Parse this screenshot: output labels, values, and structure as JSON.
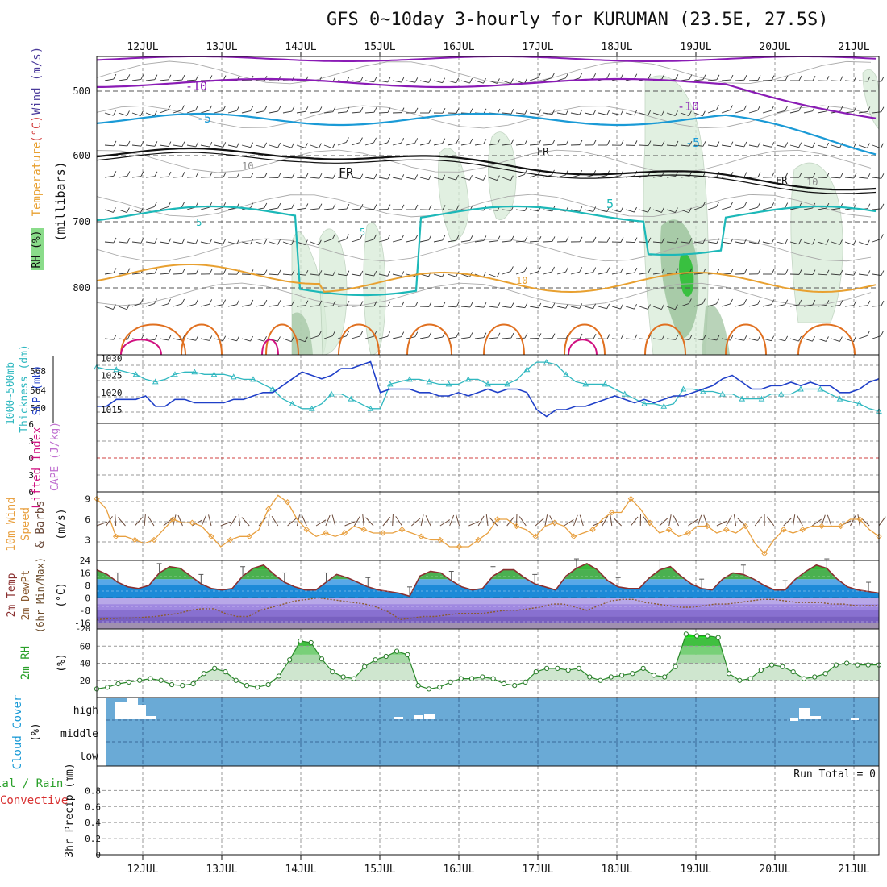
{
  "title": "GFS 0~10day 3-hourly for KURUMAN (23.5E, 27.5S)",
  "dates": [
    "12JUL",
    "13JUL",
    "14JUL",
    "15JUL",
    "16JUL",
    "17JUL",
    "18JUL",
    "19JUL",
    "20JUL",
    "21JUL"
  ],
  "panel_labels": {
    "upper_rh": "RH (%)",
    "upper_temp": "Temperature",
    "upper_temp_unit": "(°C)",
    "upper_wind": "Wind (m/s)",
    "upper_axis": "(millibars)",
    "thickness_a": "1000~500mb",
    "thickness_b": "Thickness (dm)",
    "slp": "SLP (mb)",
    "lifted": "Lifted Index",
    "cape": "CAPE (J/kg)",
    "wind10_a": "10m Wind",
    "wind10_b": "Speed",
    "wind10_c": "& Barbs",
    "wind10_unit": "(m/s)",
    "temp_a": "2m Temp",
    "temp_b": "2m DewPt",
    "temp_c": "(6hr Min/Max)",
    "temp_unit": "(°C)",
    "rh2m": "2m RH",
    "rh_unit": "(%)",
    "cloud_a": "Cloud Cover",
    "cloud_unit": "(%)",
    "precip_a": "tal / Rain",
    "precip_b": "Convective",
    "precip_c": "3hr Precip (mm)",
    "run_total": "Run Total = 0"
  },
  "colors": {
    "purple": "#8a1bb5",
    "blue": "#1a9ad6",
    "teal": "#1cb8b8",
    "orange": "#e8a030",
    "darkorange": "#e07020",
    "magenta": "#d01080",
    "slp": "#2040c8",
    "thick": "#30b8c0",
    "wind10": "#e8a040",
    "cloudbg": "#6aaad6"
  },
  "chart_data": [
    {
      "type": "contour",
      "name": "upper_air",
      "yticks": [
        500,
        600,
        700,
        800
      ],
      "ylim": [
        1000,
        450
      ],
      "contour_labels": [
        "-10",
        "-5",
        "FR",
        "-5",
        "FR",
        "FR",
        "5",
        "-5",
        "-10",
        "5",
        "10",
        "10",
        "10"
      ]
    },
    {
      "type": "line",
      "name": "thickness_slp",
      "y_left_ticks": [
        568,
        564,
        560
      ],
      "y_right_ticks": [
        1030,
        1025,
        1020,
        1015
      ],
      "series": [
        {
          "name": "SLP (mb)",
          "values": [
            1016,
            1016,
            1018,
            1018,
            1018,
            1019,
            1016,
            1016,
            1018,
            1018,
            1017,
            1017,
            1017,
            1017,
            1018,
            1018,
            1019,
            1020,
            1020,
            1022,
            1024,
            1026,
            1025,
            1024,
            1025,
            1027,
            1027,
            1028,
            1029,
            1020,
            1021,
            1021,
            1021,
            1020,
            1020,
            1019,
            1019,
            1020,
            1019,
            1020,
            1021,
            1020,
            1021,
            1021,
            1020,
            1015,
            1013,
            1015,
            1015,
            1016,
            1016,
            1017,
            1018,
            1019,
            1018,
            1017,
            1018,
            1017,
            1018,
            1019,
            1019,
            1020,
            1021,
            1022,
            1024,
            1025,
            1023,
            1021,
            1021,
            1022,
            1022,
            1023,
            1022,
            1023,
            1022,
            1022,
            1020,
            1020,
            1021,
            1023,
            1024
          ]
        },
        {
          "name": "Thickness",
          "values": [
            567.5,
            567,
            567,
            566.5,
            566,
            565,
            564.5,
            565,
            566,
            566.5,
            566.5,
            566,
            566,
            566,
            565.5,
            565,
            565,
            564,
            563,
            561,
            560,
            559,
            559,
            560,
            562,
            562,
            561,
            560,
            559,
            559,
            564,
            564.5,
            565,
            565,
            564.5,
            564,
            564,
            564,
            565,
            565,
            564,
            564,
            564,
            565,
            567,
            568.5,
            568.5,
            568,
            566,
            564.5,
            564,
            564,
            564,
            563,
            562,
            561,
            560,
            560,
            559.5,
            560,
            563,
            563,
            562.5,
            562.5,
            562,
            562,
            561,
            561,
            561,
            562,
            562,
            562,
            563,
            563,
            563,
            562,
            561,
            560.5,
            560,
            559,
            558.5
          ]
        }
      ]
    },
    {
      "type": "line",
      "name": "lifted_cape",
      "y_left_ticks": [
        6,
        3,
        0,
        3,
        6
      ],
      "series": [
        {
          "name": "Lifted Index",
          "values": []
        }
      ]
    },
    {
      "type": "line",
      "name": "wind10m",
      "yticks": [
        9,
        6,
        3
      ],
      "ylim": [
        0,
        10
      ],
      "series": [
        {
          "name": "10m Wind Speed",
          "values": [
            9,
            7.5,
            3.5,
            3.5,
            3,
            2.5,
            3,
            4.5,
            6,
            5.5,
            5.5,
            5,
            3.5,
            2,
            3,
            3.5,
            3.5,
            4.5,
            7.5,
            9.5,
            8.5,
            6,
            4.5,
            3.5,
            4,
            3.5,
            4,
            5,
            4.5,
            4,
            4,
            4,
            4.5,
            4,
            3.5,
            3,
            3,
            2,
            2,
            2,
            3,
            4,
            6,
            6,
            5,
            4.5,
            3.5,
            5,
            5.5,
            5,
            3.5,
            4,
            4.5,
            6,
            7,
            7,
            9,
            7.5,
            5.5,
            4,
            4.5,
            3.5,
            4,
            5,
            5,
            4,
            4.5,
            4,
            5,
            2.5,
            1,
            3,
            4.5,
            4,
            4.5,
            5,
            5,
            5,
            5,
            6,
            6,
            4.5,
            3.5
          ]
        }
      ]
    },
    {
      "type": "area",
      "name": "temp2m",
      "yticks": [
        24,
        16,
        8,
        0,
        -8,
        -16
      ],
      "ylim": [
        -20,
        24
      ],
      "series": [
        {
          "name": "2m Temp",
          "values": [
            18,
            15,
            10,
            7,
            6,
            8,
            16,
            20,
            19,
            14,
            9,
            6,
            5,
            6,
            14,
            19,
            21,
            15,
            10,
            7,
            5,
            5,
            10,
            15,
            13,
            10,
            7,
            5,
            4,
            3,
            1,
            14,
            17,
            16,
            11,
            7,
            5,
            6,
            14,
            18,
            18,
            13,
            9,
            7,
            5,
            14,
            19,
            22,
            18,
            11,
            7,
            6,
            6,
            13,
            18,
            20,
            14,
            9,
            6,
            5,
            12,
            16,
            15,
            12,
            8,
            5,
            5,
            12,
            17,
            21,
            19,
            12,
            7,
            5,
            4,
            3
          ]
        },
        {
          "name": "2m DewPt",
          "values": [
            -14,
            -13.5,
            -13,
            -13,
            -12.5,
            -12,
            -11,
            -10,
            -8,
            -7,
            -7,
            -10,
            -12,
            -12,
            -8,
            -6,
            -4,
            -2,
            -1,
            0,
            -1,
            -2,
            -3,
            -4,
            -6,
            -9,
            -14,
            -13,
            -12,
            -12,
            -11,
            -10,
            -10,
            -10,
            -9,
            -8,
            -8,
            -7,
            -6,
            -4,
            -4,
            -6,
            -8,
            -5,
            -2,
            -1,
            -1,
            -3,
            -4,
            -5,
            -6,
            -6,
            -5,
            -4,
            -4,
            -3,
            -2,
            -1,
            -1,
            -2,
            -3,
            -3,
            -3,
            -4,
            -4,
            -5,
            -5,
            -5
          ]
        }
      ]
    },
    {
      "type": "area",
      "name": "rh2m",
      "yticks": [
        60,
        40,
        20
      ],
      "ylim": [
        0,
        80
      ],
      "series": [
        {
          "name": "2m RH",
          "values": [
            10,
            12,
            16,
            18,
            20,
            22,
            20,
            15,
            14,
            16,
            28,
            34,
            30,
            20,
            14,
            12,
            15,
            25,
            44,
            66,
            64,
            45,
            30,
            24,
            22,
            36,
            44,
            48,
            54,
            50,
            14,
            10,
            12,
            18,
            22,
            22,
            24,
            22,
            16,
            14,
            18,
            30,
            34,
            34,
            32,
            34,
            24,
            20,
            24,
            26,
            28,
            34,
            26,
            24,
            36,
            74,
            72,
            72,
            70,
            28,
            20,
            22,
            32,
            38,
            36,
            30,
            22,
            24,
            28,
            38,
            40,
            38,
            38,
            38
          ]
        }
      ]
    },
    {
      "type": "bar",
      "name": "cloud",
      "yticks": [
        "high",
        "middle",
        "low"
      ],
      "series": [
        {
          "name": "high cloud",
          "values": []
        }
      ]
    },
    {
      "type": "bar",
      "name": "precip",
      "yticks": [
        0.8,
        0.6,
        0.4,
        0.2,
        0
      ],
      "ylim": [
        0,
        1
      ],
      "series": [
        {
          "name": "3hr Precip",
          "values": []
        }
      ]
    }
  ]
}
